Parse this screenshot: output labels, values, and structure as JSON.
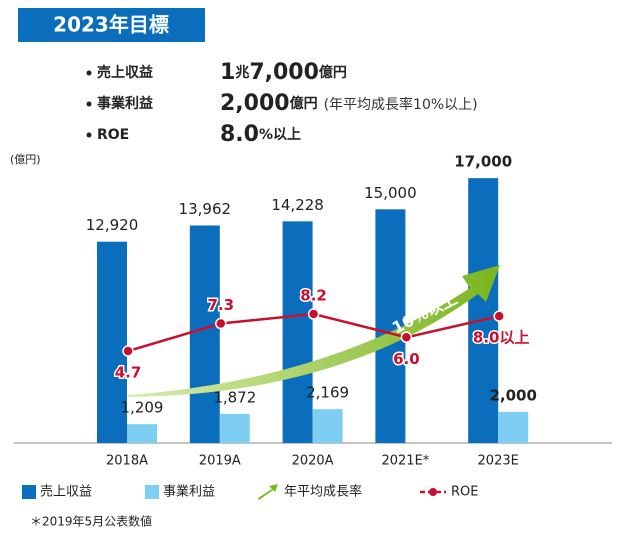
{
  "header": {
    "title": "2023年目標",
    "items": [
      {
        "label": "売上収益",
        "value": "1兆7,000億円"
      },
      {
        "label": "事業利益",
        "value": "2,000億円",
        "note": "(年平均成長率10%以上)"
      },
      {
        "label": "ROE",
        "value": "8.0%以上"
      }
    ]
  },
  "chart_data": {
    "type": "bar",
    "unit_label": "(億円)",
    "categories": [
      "2018A",
      "2019A",
      "2020A",
      "2021E*",
      "2023E"
    ],
    "ylim": [
      0,
      19000
    ],
    "y2lim": [
      -4,
      24
    ],
    "series": [
      {
        "name": "売上収益",
        "color": "#0a6ebd",
        "values": [
          12920,
          13962,
          14228,
          15000,
          17000
        ],
        "value_labels": [
          "12,920",
          "13,962",
          "14,228",
          "15,000",
          "17,000"
        ]
      },
      {
        "name": "事業利益",
        "color": "#7ecef4",
        "values": [
          1209,
          1872,
          2169,
          null,
          2000
        ],
        "value_labels": [
          "1,209",
          "1,872",
          "2,169",
          null,
          "2,000"
        ]
      },
      {
        "name": "ROE",
        "type": "line",
        "axis": "y2",
        "color": "#c8102e",
        "values": [
          4.7,
          7.3,
          8.2,
          6.0,
          8.0
        ],
        "value_labels": [
          "4.7",
          "7.3",
          "8.2",
          "6.0",
          "8.0以上"
        ]
      }
    ],
    "arrow_label": "10%以上",
    "arrow_legend": "年平均成長率",
    "footnote": "＊2019年5月公表数値"
  }
}
